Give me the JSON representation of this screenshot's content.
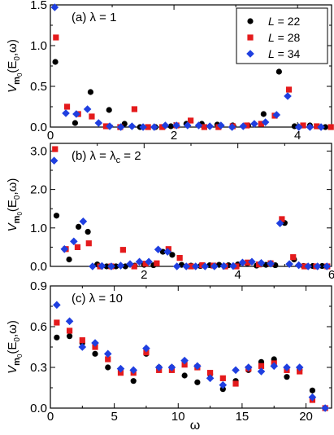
{
  "xlabel": "ω",
  "ylabel": {
    "main": "V",
    "sub1": "m",
    "sub2": "0",
    "args": "(E",
    "argsub": "0",
    "argtail": ",ω)"
  },
  "legend": {
    "placement": "top-right",
    "entries": [
      {
        "prefix": "L",
        "value": " = 22"
      },
      {
        "prefix": "L",
        "value": " = 28"
      },
      {
        "prefix": "L",
        "value": " = 34"
      }
    ]
  },
  "colors": {
    "L22": "#000000",
    "L28": "#e41a1c",
    "L34": "#1f3fe0"
  },
  "chart_data": [
    {
      "type": "scatter",
      "title": "(a) λ = 1",
      "xlim": [
        0,
        4.55
      ],
      "ylim": [
        0,
        1.5
      ],
      "xticks": [
        0,
        2,
        4
      ],
      "xtick_labels": [
        "0",
        "2",
        "4"
      ],
      "yticks": [
        0,
        0.5,
        1.0,
        1.5
      ],
      "ytick_labels": [
        "0.0",
        "0.5",
        "1.0",
        "1.5"
      ],
      "series": [
        {
          "name": "L = 22",
          "marker": "circle",
          "x": [
            0.08,
            0.4,
            0.65,
            0.95,
            1.2,
            1.45,
            1.7,
            1.95,
            2.2,
            2.45,
            2.7,
            2.95,
            3.2,
            3.45,
            3.7,
            3.95,
            4.2,
            4.45
          ],
          "y": [
            0.8,
            0.05,
            0.43,
            0.21,
            0.04,
            0.0,
            0.0,
            0.01,
            0.04,
            0.04,
            0.03,
            0.02,
            0.02,
            0.16,
            0.68,
            0.01,
            0.02,
            0.0
          ]
        },
        {
          "name": "L = 28",
          "marker": "square",
          "x": [
            0.09,
            0.27,
            0.45,
            0.67,
            0.9,
            1.13,
            1.36,
            1.58,
            1.81,
            2.04,
            2.27,
            2.49,
            2.72,
            2.95,
            3.18,
            3.41,
            3.63,
            3.86,
            4.09,
            4.31,
            4.54
          ],
          "y": [
            1.1,
            0.25,
            0.16,
            0.13,
            0.01,
            0.0,
            0.22,
            0.0,
            0.0,
            0.02,
            0.08,
            0.0,
            0.0,
            0.01,
            0.02,
            0.04,
            0.14,
            0.46,
            0.02,
            0.01,
            0.0
          ]
        },
        {
          "name": "L = 34",
          "marker": "diamond",
          "x": [
            0.07,
            0.25,
            0.42,
            0.6,
            0.78,
            0.96,
            1.14,
            1.32,
            1.5,
            1.68,
            1.86,
            2.04,
            2.22,
            2.4,
            2.58,
            2.76,
            2.94,
            3.12,
            3.3,
            3.48,
            3.66,
            3.84,
            4.02,
            4.2,
            4.38
          ],
          "y": [
            1.47,
            0.17,
            0.16,
            0.22,
            0.05,
            0.01,
            0.0,
            0.01,
            0.0,
            0.0,
            0.02,
            0.02,
            0.02,
            0.02,
            0.01,
            0.02,
            0.0,
            0.01,
            0.04,
            0.06,
            0.15,
            0.38,
            0.0,
            0.0,
            0.0
          ]
        }
      ]
    },
    {
      "type": "scatter",
      "title": "(b) λ = λ",
      "title_sub": "c",
      "title_tail": " = 2",
      "xlim": [
        0,
        6
      ],
      "ylim": [
        0,
        3.2
      ],
      "xticks": [
        2,
        4,
        6
      ],
      "xtick_labels": [
        "2",
        "4",
        "6"
      ],
      "yticks": [
        0,
        1.0,
        2.0,
        3.0
      ],
      "ytick_labels": [
        "0.0",
        "1.0",
        "2.0",
        "3.0"
      ],
      "series": [
        {
          "name": "L = 22",
          "marker": "circle",
          "x": [
            0.13,
            0.4,
            0.6,
            0.8,
            1.0,
            1.2,
            1.4,
            1.6,
            1.8,
            2.0,
            2.2,
            2.4,
            2.6,
            2.8,
            3.0,
            3.2,
            3.4,
            3.6,
            3.8,
            4.0,
            4.2,
            4.4,
            4.6,
            4.8,
            5.0,
            5.2,
            5.4,
            5.6,
            5.8
          ],
          "y": [
            1.32,
            0.18,
            1.03,
            0.9,
            0.05,
            0.0,
            0.0,
            0.0,
            0.02,
            0.04,
            0.03,
            0.38,
            0.3,
            0.04,
            0.02,
            0.01,
            0.03,
            0.04,
            0.03,
            0.05,
            0.08,
            0.02,
            0.04,
            0.03,
            1.13,
            0.18,
            0.01,
            0.01,
            0.01
          ]
        },
        {
          "name": "L = 28",
          "marker": "square",
          "x": [
            0.1,
            0.33,
            0.58,
            0.82,
            1.06,
            1.3,
            1.55,
            1.79,
            2.03,
            2.27,
            2.52,
            2.76,
            3.0,
            3.24,
            3.48,
            3.73,
            3.97,
            4.21,
            4.45,
            4.7,
            4.94,
            5.18,
            5.42,
            5.67,
            5.91
          ],
          "y": [
            3.05,
            0.45,
            0.5,
            0.6,
            0.0,
            0.0,
            0.43,
            0.0,
            0.07,
            0.08,
            0.45,
            0.22,
            0.0,
            0.03,
            0.02,
            0.0,
            0.0,
            0.1,
            0.05,
            0.08,
            1.23,
            0.24,
            0.0,
            0.0,
            0.0
          ]
        },
        {
          "name": "L = 34",
          "marker": "diamond",
          "x": [
            0.08,
            0.3,
            0.5,
            0.7,
            0.9,
            1.1,
            1.3,
            1.5,
            1.7,
            1.9,
            2.1,
            2.3,
            2.5,
            2.7,
            2.9,
            3.1,
            3.3,
            3.5,
            3.7,
            3.9,
            4.1,
            4.3,
            4.5,
            4.7,
            4.9,
            5.1,
            5.3,
            5.5,
            5.7,
            5.9
          ],
          "y": [
            2.75,
            0.45,
            0.65,
            1.17,
            0.0,
            0.01,
            0.0,
            0.02,
            0.06,
            0.12,
            0.12,
            0.44,
            0.38,
            0.0,
            0.0,
            0.0,
            0.0,
            0.0,
            0.01,
            0.01,
            0.1,
            0.12,
            0.09,
            0.07,
            1.12,
            0.06,
            0.03,
            0.0,
            0.0,
            0.0
          ]
        }
      ]
    },
    {
      "type": "scatter",
      "title": "(c) λ = 10",
      "xlim": [
        0,
        22
      ],
      "ylim": [
        0,
        0.9
      ],
      "xticks": [
        0,
        5,
        10,
        15,
        20
      ],
      "xtick_labels": [
        "0",
        "5",
        "10",
        "15",
        "20"
      ],
      "yticks": [
        0,
        0.3,
        0.6,
        0.9
      ],
      "ytick_labels": [
        "0.0",
        "0.3",
        "0.6",
        "0.9"
      ],
      "series": [
        {
          "name": "L = 22",
          "marker": "circle",
          "x": [
            0.5,
            1.5,
            2.5,
            3.5,
            4.5,
            5.5,
            6.5,
            7.5,
            8.5,
            9.5,
            10.5,
            11.5,
            12.5,
            13.5,
            14.5,
            15.5,
            16.5,
            17.5,
            18.5,
            19.5,
            20.5,
            21.5
          ],
          "y": [
            0.52,
            0.53,
            0.48,
            0.4,
            0.3,
            0.27,
            0.2,
            0.4,
            0.3,
            0.3,
            0.24,
            0.19,
            0.25,
            0.14,
            0.2,
            0.28,
            0.34,
            0.36,
            0.23,
            0.28,
            0.13,
            0.0
          ]
        },
        {
          "name": "L = 28",
          "marker": "square",
          "x": [
            0.5,
            1.5,
            2.5,
            3.5,
            4.5,
            5.5,
            6.5,
            7.5,
            8.5,
            9.5,
            10.5,
            11.5,
            12.5,
            13.5,
            14.5,
            15.5,
            16.5,
            17.5,
            18.5,
            19.5,
            20.5,
            21.5
          ],
          "y": [
            0.63,
            0.57,
            0.5,
            0.45,
            0.36,
            0.26,
            0.26,
            0.41,
            0.28,
            0.28,
            0.32,
            0.3,
            0.26,
            0.22,
            0.18,
            0.29,
            0.31,
            0.33,
            0.28,
            0.27,
            0.06,
            0.0
          ]
        },
        {
          "name": "L = 34",
          "marker": "diamond",
          "x": [
            0.5,
            1.5,
            2.5,
            3.5,
            4.5,
            5.5,
            6.5,
            7.5,
            8.5,
            9.5,
            10.5,
            11.5,
            12.5,
            13.5,
            14.5,
            15.5,
            16.5,
            17.5,
            18.5,
            19.5,
            20.5,
            21.5
          ],
          "y": [
            0.76,
            0.64,
            0.45,
            0.48,
            0.4,
            0.29,
            0.28,
            0.44,
            0.3,
            0.3,
            0.35,
            0.31,
            0.22,
            0.17,
            0.28,
            0.3,
            0.27,
            0.31,
            0.3,
            0.3,
            0.08,
            0.0
          ]
        }
      ]
    }
  ]
}
